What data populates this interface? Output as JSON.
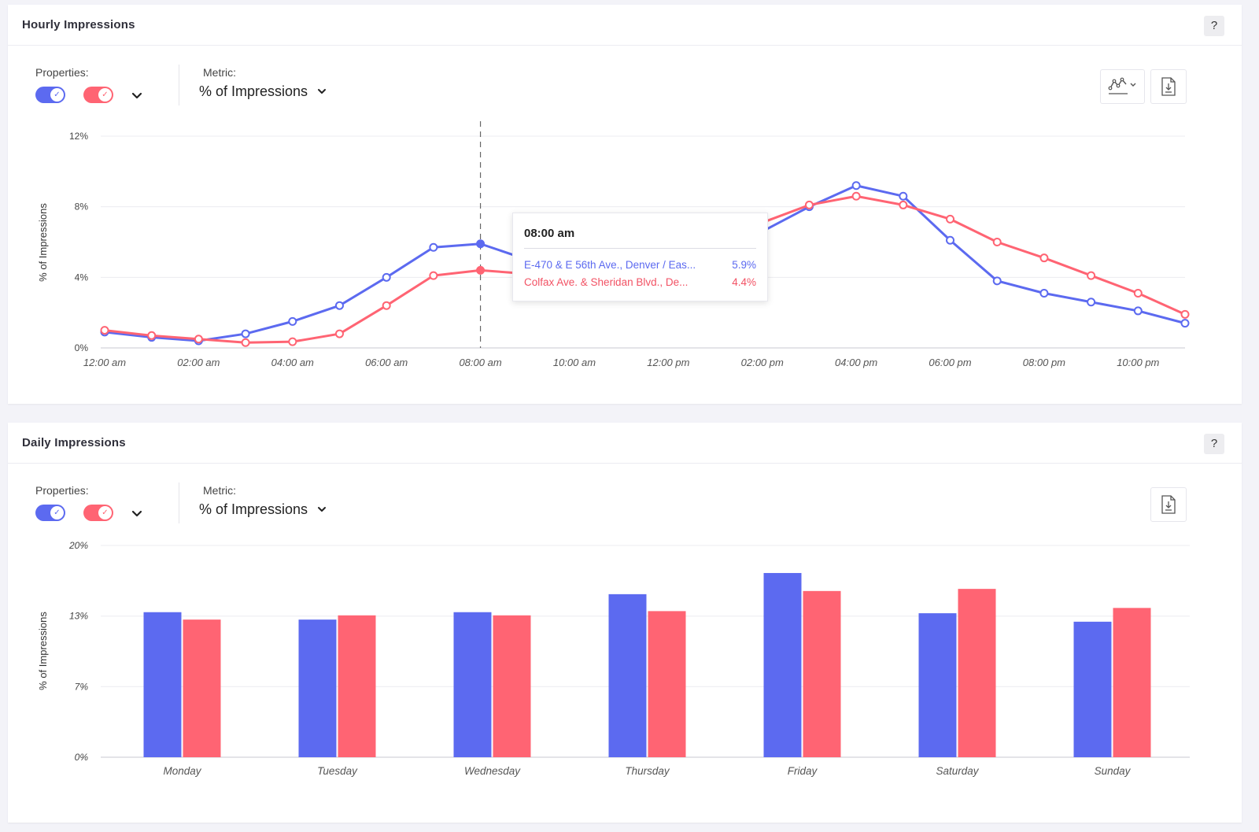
{
  "colors": {
    "blue": "#5c6af0",
    "red": "#ff6473",
    "grid": "#ececf0",
    "axis": "#c8c8d0"
  },
  "hourly": {
    "title": "Hourly Impressions",
    "help_label": "?",
    "properties_label": "Properties:",
    "metric_label": "Metric:",
    "metric_value": "% of Impressions",
    "icons": [
      "line-chart-style-icon",
      "download-file-icon"
    ],
    "tooltip": {
      "time": "08:00 am",
      "rows": [
        {
          "name": "E-470 & E 56th Ave., Denver / Eas...",
          "value": "5.9%"
        },
        {
          "name": "Colfax Ave. & Sheridan Blvd., De...",
          "value": "4.4%"
        }
      ]
    }
  },
  "daily": {
    "title": "Daily Impressions",
    "help_label": "?",
    "properties_label": "Properties:",
    "metric_label": "Metric:",
    "metric_value": "% of Impressions",
    "icons": [
      "download-file-icon"
    ]
  },
  "chart_data": [
    {
      "type": "line",
      "ylabel": "% of Impressions",
      "ylim": [
        0,
        12
      ],
      "yticks": [
        "0%",
        "4%",
        "8%",
        "12%"
      ],
      "ytick_values": [
        0,
        4,
        8,
        12
      ],
      "xticks": [
        "12:00 am",
        "02:00 am",
        "04:00 am",
        "06:00 am",
        "08:00 am",
        "10:00 am",
        "12:00 pm",
        "02:00 pm",
        "04:00 pm",
        "06:00 pm",
        "08:00 pm",
        "10:00 pm"
      ],
      "xtick_hours": [
        0,
        2,
        4,
        6,
        8,
        10,
        12,
        14,
        16,
        18,
        20,
        22
      ],
      "x": [
        0,
        1,
        2,
        3,
        4,
        5,
        6,
        7,
        8,
        9,
        10,
        11,
        12,
        13,
        14,
        15,
        16,
        17,
        18,
        19,
        20,
        21,
        22,
        23
      ],
      "highlight_hour": 8,
      "series": [
        {
          "color": "blue",
          "values": [
            0.9,
            0.6,
            0.4,
            0.8,
            1.5,
            2.4,
            4.0,
            5.7,
            5.9,
            5.0,
            5.2,
            5.5,
            5.9,
            6.3,
            6.6,
            8.0,
            9.2,
            8.6,
            6.1,
            3.8,
            3.1,
            2.6,
            2.1,
            1.4
          ]
        },
        {
          "color": "red",
          "values": [
            1.0,
            0.7,
            0.5,
            0.3,
            0.35,
            0.8,
            2.4,
            4.1,
            4.4,
            4.2,
            4.6,
            5.0,
            5.6,
            6.1,
            7.1,
            8.1,
            8.6,
            8.1,
            7.3,
            6.0,
            5.1,
            4.1,
            3.1,
            1.9
          ]
        }
      ]
    },
    {
      "type": "bar",
      "ylabel": "% of Impressions",
      "ylim": [
        0,
        20
      ],
      "yticks": [
        "0%",
        "7%",
        "13%",
        "20%"
      ],
      "ytick_values": [
        0,
        6.67,
        13.33,
        20
      ],
      "categories": [
        "Monday",
        "Tuesday",
        "Wednesday",
        "Thursday",
        "Friday",
        "Saturday",
        "Sunday"
      ],
      "series": [
        {
          "color": "blue",
          "values": [
            13.7,
            13.0,
            13.7,
            15.4,
            17.4,
            13.6,
            12.8
          ]
        },
        {
          "color": "red",
          "values": [
            13.0,
            13.4,
            13.4,
            13.8,
            15.7,
            15.9,
            14.1
          ]
        }
      ]
    }
  ]
}
